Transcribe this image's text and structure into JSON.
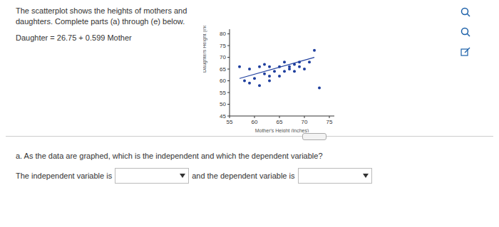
{
  "header": {
    "text": "The scatterplot shows the heights of mothers and daughters. Complete parts (a) through (e) below.",
    "equation": "Daughter = 26.75 + 0.599 Mother"
  },
  "chart_data": {
    "type": "scatter",
    "x_label": "Mother's Height (inches)",
    "y_label": "Daughters Height (inches)",
    "xlim": [
      55,
      76
    ],
    "ylim": [
      45,
      82
    ],
    "xticks": [
      55,
      60,
      65,
      70,
      75
    ],
    "yticks": [
      45,
      50,
      55,
      60,
      65,
      70,
      75,
      80
    ],
    "series": [
      {
        "type": "scatter",
        "marker": "circle",
        "color": "#1f3f9e",
        "x": [
          57,
          58,
          59,
          59,
          60,
          61,
          61,
          62,
          62,
          63,
          63,
          63,
          64,
          65,
          65,
          66,
          66,
          67,
          67,
          68,
          68,
          69,
          69,
          70,
          71,
          72,
          73
        ],
        "values": [
          66,
          60,
          59,
          65,
          61,
          66,
          58,
          67,
          63,
          66,
          62,
          60,
          64,
          62,
          66,
          64,
          68,
          66,
          65,
          67,
          64,
          68,
          66,
          65,
          68,
          73,
          57
        ]
      },
      {
        "type": "line",
        "line_style": "solid",
        "color": "#1f3f9e",
        "x": [
          57,
          72
        ],
        "values": [
          61,
          70
        ]
      }
    ]
  },
  "question": {
    "text": "a. As the data are graphed, which is the independent and which the dependent variable?",
    "answer_prefix": "The independent variable is",
    "answer_middle": "and the dependent variable is"
  }
}
